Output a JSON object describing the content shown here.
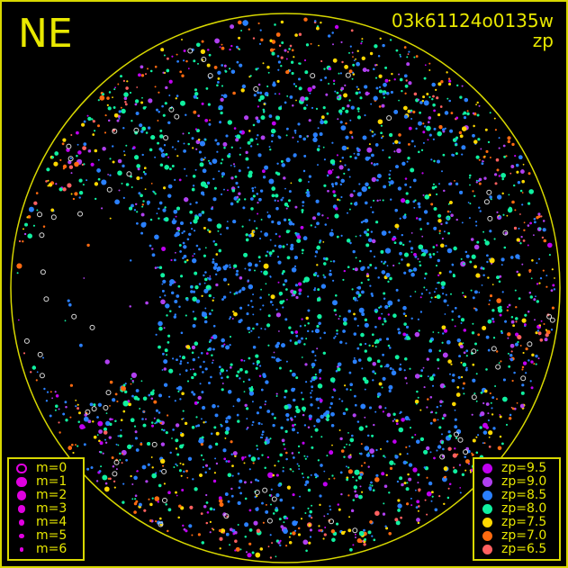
{
  "corner_label": "NE",
  "title": "03k61124o0135w",
  "subtitle": "zp",
  "colors": {
    "frame": "#d8d800",
    "background": "#000000",
    "text": "#e8e800"
  },
  "magnitude_legend": [
    {
      "label": "m=0",
      "style": "open-circle"
    },
    {
      "label": "m=1",
      "style": "filled"
    },
    {
      "label": "m=2",
      "style": "filled"
    },
    {
      "label": "m=3",
      "style": "filled"
    },
    {
      "label": "m=4",
      "style": "filled"
    },
    {
      "label": "m=5",
      "style": "filled"
    },
    {
      "label": "m=6",
      "style": "filled"
    }
  ],
  "zp_legend": [
    {
      "label": "zp=9.5",
      "color": "#c000f0"
    },
    {
      "label": "zp=9.0",
      "color": "#b040f0"
    },
    {
      "label": "zp=8.5",
      "color": "#2a80ff"
    },
    {
      "label": "zp=8.0",
      "color": "#10f0a0"
    },
    {
      "label": "zp=7.5",
      "color": "#ffd800"
    },
    {
      "label": "zp=7.0",
      "color": "#ff6a10"
    },
    {
      "label": "zp=6.5",
      "color": "#ff6060"
    }
  ]
}
